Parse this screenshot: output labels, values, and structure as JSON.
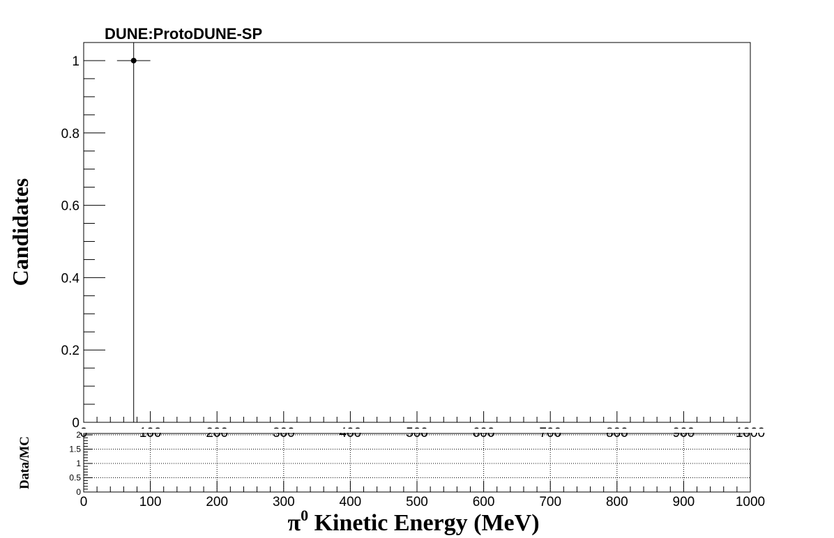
{
  "chart_data": [
    {
      "type": "scatter",
      "title": "DUNE:ProtoDUNE-SP",
      "ylabel": "Candidates",
      "xlabel": "",
      "xlim": [
        0,
        1000
      ],
      "ylim": [
        0,
        1.05
      ],
      "x_ticks": [
        "0",
        "100",
        "200",
        "300",
        "400",
        "500",
        "600",
        "700",
        "800",
        "900",
        "1000"
      ],
      "y_ticks": [
        "0",
        "0.2",
        "0.4",
        "0.6",
        "0.8",
        "1"
      ],
      "grid": false,
      "points": [
        {
          "x": 75,
          "y": 1,
          "xerr": 25,
          "yerr": 1
        }
      ]
    },
    {
      "type": "scatter",
      "ylabel": "Data/MC",
      "xlabel_main": "π",
      "xlabel_sup": "0",
      "xlabel_rest": " Kinetic Energy (MeV)",
      "xlim": [
        0,
        1000
      ],
      "ylim": [
        0,
        2.05
      ],
      "x_ticks": [
        "0",
        "100",
        "200",
        "300",
        "400",
        "500",
        "600",
        "700",
        "800",
        "900",
        "1000"
      ],
      "y_ticks": [
        "0",
        "0.5",
        "1",
        "1.5",
        "2"
      ],
      "grid": true,
      "points": []
    }
  ]
}
